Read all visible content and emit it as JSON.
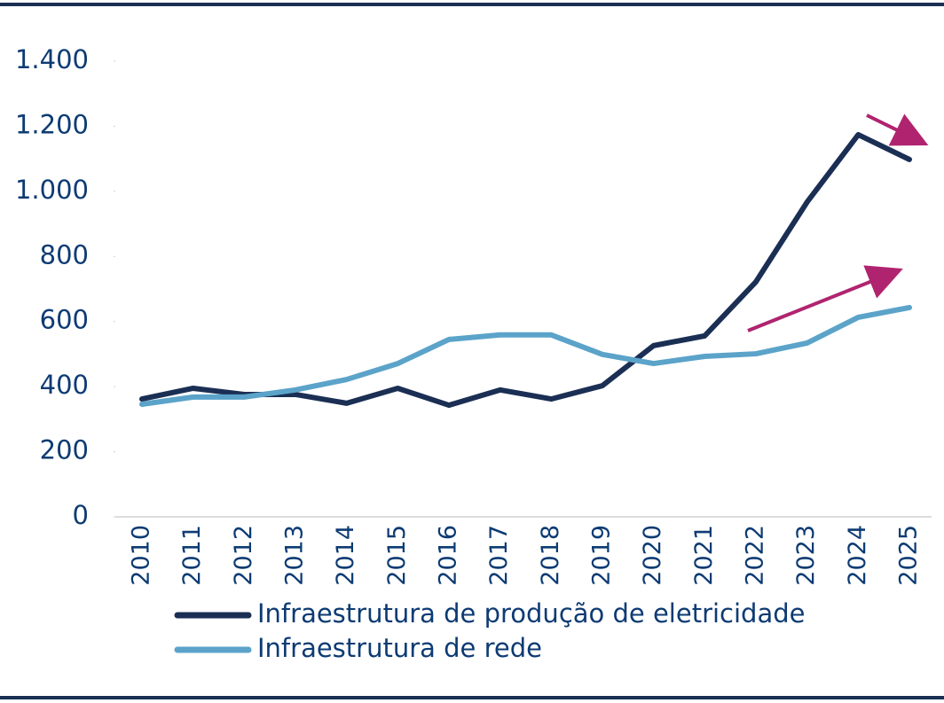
{
  "chart_data": {
    "type": "line",
    "categories": [
      "2010",
      "2011",
      "2012",
      "2013",
      "2014",
      "2015",
      "2016",
      "2017",
      "2018",
      "2019",
      "2020",
      "2021",
      "2022",
      "2023",
      "2024",
      "2025"
    ],
    "series": [
      {
        "name": "Infraestrutura de produção de eletricidade",
        "color": "#1b2f54",
        "values": [
          362,
          395,
          376,
          376,
          349,
          395,
          343,
          390,
          362,
          403,
          526,
          556,
          722,
          967,
          1174,
          1098
        ]
      },
      {
        "name": "Infraestrutura de rede",
        "color": "#5ba3c9",
        "values": [
          346,
          368,
          368,
          390,
          422,
          471,
          545,
          559,
          559,
          499,
          471,
          493,
          501,
          534,
          613,
          643
        ]
      }
    ],
    "ylim": [
      0,
      1400
    ],
    "yticks": [
      0,
      200,
      400,
      600,
      800,
      {
        "value": 1000,
        "label": "1.000"
      },
      {
        "value": 1200,
        "label": "1.200"
      },
      {
        "value": 1400,
        "label": "1.400"
      }
    ],
    "grid": false
  }
}
